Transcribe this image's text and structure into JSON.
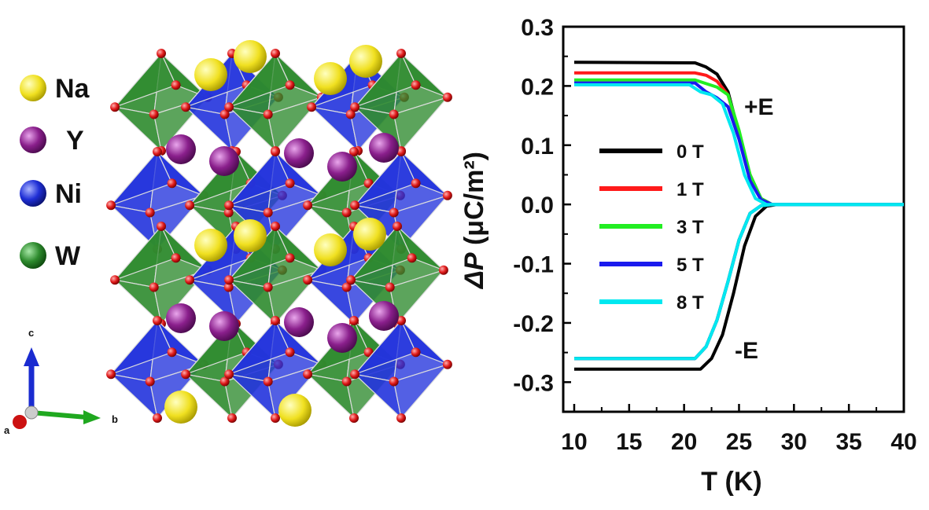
{
  "structure": {
    "atom_legend": [
      {
        "label": "Na",
        "color": "#f2e52a"
      },
      {
        "label": "Y",
        "color": "#8a1f8c"
      },
      {
        "label": "Ni",
        "color": "#1f2fd6"
      },
      {
        "label": "W",
        "color": "#2e8b2e"
      }
    ],
    "oxygen_color": "#e01a1a",
    "axes": {
      "a": "a",
      "b": "b",
      "c": "c"
    }
  },
  "chart_data": {
    "type": "line",
    "xlabel": "T (K)",
    "ylabel_prefix": "ΔP",
    "ylabel_unit": "(μC/m²)",
    "xlim": [
      9,
      40
    ],
    "ylim": [
      -0.35,
      0.3
    ],
    "xticks": [
      "10",
      "15",
      "20",
      "25",
      "30",
      "35",
      "40"
    ],
    "yticks": [
      "0.3",
      "0.2",
      "0.1",
      "0.0",
      "-0.1",
      "-0.2",
      "-0.3"
    ],
    "annotations": [
      "+E",
      "-E"
    ],
    "legend_position": "center-left",
    "series": [
      {
        "name": "0 T",
        "color": "#000000",
        "plus_E": [
          [
            10,
            0.24
          ],
          [
            21,
            0.239
          ],
          [
            22,
            0.232
          ],
          [
            23,
            0.22
          ],
          [
            24,
            0.19
          ],
          [
            25,
            0.12
          ],
          [
            26,
            0.05
          ],
          [
            27,
            0.01
          ],
          [
            28,
            0.0
          ],
          [
            40,
            0.0
          ]
        ],
        "minus_E": [
          [
            10,
            -0.278
          ],
          [
            21.5,
            -0.278
          ],
          [
            22.5,
            -0.26
          ],
          [
            23.5,
            -0.22
          ],
          [
            24.5,
            -0.15
          ],
          [
            25.5,
            -0.07
          ],
          [
            26.5,
            -0.02
          ],
          [
            27.5,
            -0.003
          ],
          [
            28.5,
            0.0
          ],
          [
            40,
            0.0
          ]
        ]
      },
      {
        "name": "1 T",
        "color": "#ff1a1a",
        "plus_E": [
          [
            10,
            0.222
          ],
          [
            21,
            0.222
          ],
          [
            22,
            0.218
          ],
          [
            23,
            0.208
          ],
          [
            24,
            0.185
          ],
          [
            25,
            0.12
          ],
          [
            26,
            0.045
          ],
          [
            27,
            0.008
          ],
          [
            28,
            0.0
          ],
          [
            40,
            0.0
          ]
        ],
        "minus_E": [
          [
            10,
            -0.26
          ],
          [
            21,
            -0.26
          ],
          [
            22,
            -0.24
          ],
          [
            23,
            -0.195
          ],
          [
            24,
            -0.13
          ],
          [
            25,
            -0.06
          ],
          [
            26,
            -0.015
          ],
          [
            27,
            -0.002
          ],
          [
            28,
            0.0
          ],
          [
            40,
            0.0
          ]
        ]
      },
      {
        "name": "3 T",
        "color": "#22ee22",
        "plus_E": [
          [
            10,
            0.21
          ],
          [
            21,
            0.21
          ],
          [
            22,
            0.204
          ],
          [
            23,
            0.198
          ],
          [
            24,
            0.185
          ],
          [
            25,
            0.125
          ],
          [
            26,
            0.05
          ],
          [
            27,
            0.01
          ],
          [
            28,
            0.0
          ],
          [
            40,
            0.0
          ]
        ],
        "minus_E": [
          [
            10,
            -0.26
          ],
          [
            21,
            -0.26
          ],
          [
            22,
            -0.24
          ],
          [
            23,
            -0.195
          ],
          [
            24,
            -0.13
          ],
          [
            25,
            -0.06
          ],
          [
            26,
            -0.015
          ],
          [
            27,
            -0.002
          ],
          [
            28,
            0.0
          ],
          [
            40,
            0.0
          ]
        ]
      },
      {
        "name": "5 T",
        "color": "#1a1aee",
        "plus_E": [
          [
            10,
            0.205
          ],
          [
            21,
            0.205
          ],
          [
            22,
            0.19
          ],
          [
            23,
            0.18
          ],
          [
            24,
            0.165
          ],
          [
            25,
            0.11
          ],
          [
            26,
            0.04
          ],
          [
            27,
            0.008
          ],
          [
            28,
            0.0
          ],
          [
            40,
            0.0
          ]
        ],
        "minus_E": [
          [
            10,
            -0.26
          ],
          [
            21,
            -0.26
          ],
          [
            22,
            -0.24
          ],
          [
            23,
            -0.195
          ],
          [
            24,
            -0.13
          ],
          [
            25,
            -0.06
          ],
          [
            26,
            -0.015
          ],
          [
            27,
            -0.002
          ],
          [
            28,
            0.0
          ],
          [
            40,
            0.0
          ]
        ]
      },
      {
        "name": "8 T",
        "color": "#00e8f0",
        "plus_E": [
          [
            10,
            0.202
          ],
          [
            20.5,
            0.202
          ],
          [
            21.5,
            0.19
          ],
          [
            22.5,
            0.185
          ],
          [
            23.5,
            0.17
          ],
          [
            24.5,
            0.12
          ],
          [
            25.5,
            0.05
          ],
          [
            26.5,
            0.01
          ],
          [
            27.5,
            0.0
          ],
          [
            40,
            0.0
          ]
        ],
        "minus_E": [
          [
            10,
            -0.26
          ],
          [
            21,
            -0.26
          ],
          [
            22,
            -0.24
          ],
          [
            23,
            -0.195
          ],
          [
            24,
            -0.13
          ],
          [
            25,
            -0.06
          ],
          [
            26,
            -0.015
          ],
          [
            27,
            -0.002
          ],
          [
            28,
            0.0
          ],
          [
            40,
            0.0
          ]
        ]
      }
    ]
  }
}
